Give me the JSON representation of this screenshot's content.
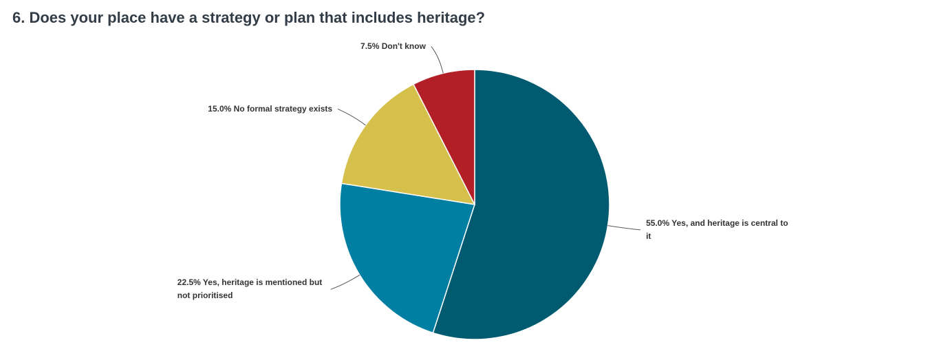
{
  "chart_data": {
    "type": "pie",
    "title": "6. Does your place have a strategy or plan that includes heritage?",
    "categories": [
      "Yes, and heritage is central to it",
      "Yes, heritage is mentioned but not prioritised",
      "No formal strategy exists",
      "Don't know"
    ],
    "values": [
      55,
      22.5,
      15,
      7.5
    ],
    "value_labels": [
      "55.0%",
      "22.5%",
      "15.0%",
      "7.5%"
    ],
    "colors": [
      "#005b70",
      "#007fa3",
      "#d4c04a",
      "#b31f27"
    ]
  }
}
